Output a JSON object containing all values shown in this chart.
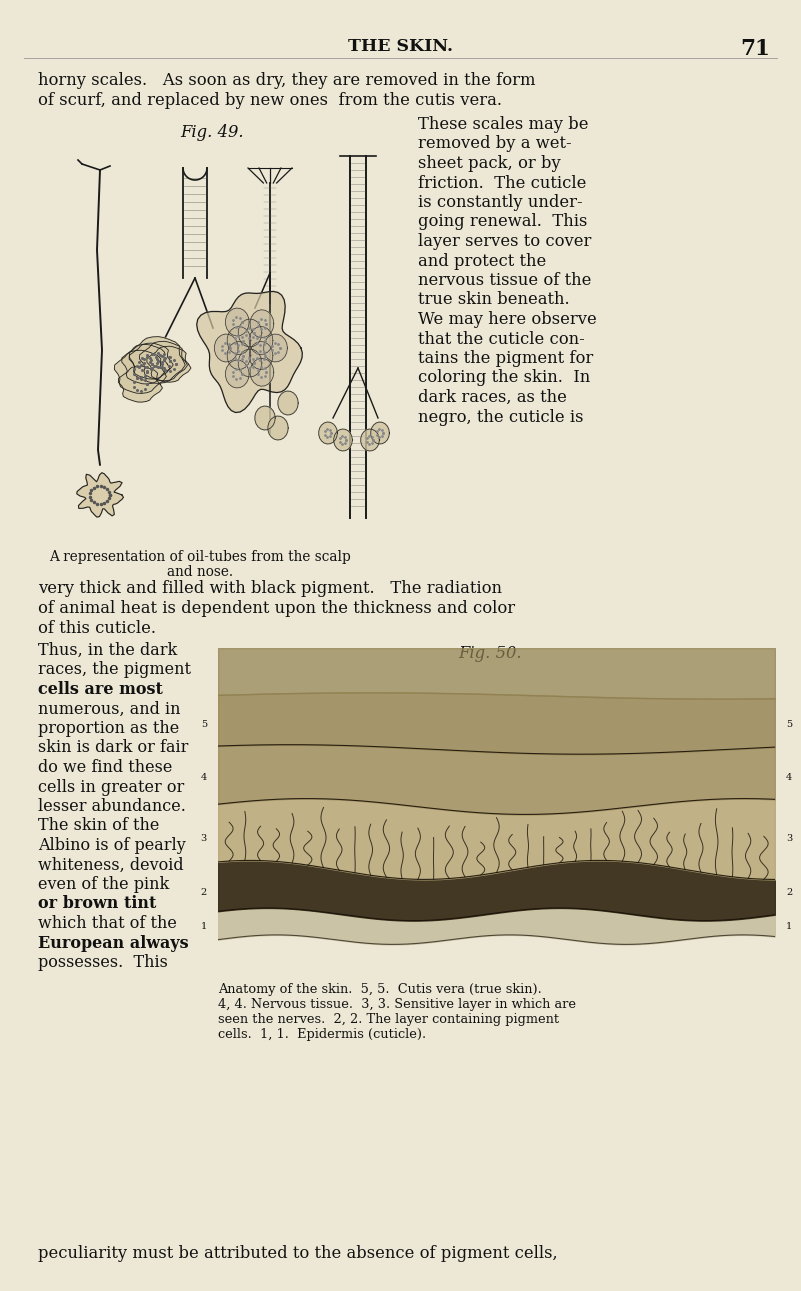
{
  "bg_color": "#ede8d5",
  "page_width": 8.01,
  "page_height": 12.91,
  "dpi": 100,
  "header_text": "THE SKIN.",
  "header_page": "71",
  "body_text_top": [
    "horny scales.   As soon as dry, they are removed in the form",
    "of scurf, and replaced by new ones  from the cutis vera."
  ],
  "fig49_label": "Fig. 49.",
  "fig49_caption_line1": "A representation of oil-tubes from the scalp",
  "fig49_caption_line2": "and nose.",
  "right_col": [
    "These scales may be",
    "removed by a wet-",
    "sheet pack, or by",
    "friction.  The cuticle",
    "is constantly under-",
    "going renewal.  This",
    "layer serves to cover",
    "and protect the",
    "nervous tissue of the",
    "true skin beneath.",
    "We may here observe",
    "that the cuticle con-",
    "tains the pigment for",
    "coloring the skin.  In",
    "dark races, as the",
    "negro, the cuticle is"
  ],
  "body_text_mid": [
    "very thick and filled with black pigment.   The radiation",
    "of animal heat is dependent upon the thickness and color",
    "of this cuticle."
  ],
  "fig50_label": "Fig. 50.",
  "left_col": [
    "Thus, in the dark",
    "races, the pigment",
    "cells are most",
    "numerous, and in",
    "proportion as the",
    "skin is dark or fair",
    "do we find these",
    "cells in greater or",
    "lesser abundance.",
    "The skin of the",
    "Albino is of pearly",
    "whiteness, devoid",
    "even of the pink",
    "or brown tint",
    "which that of the",
    "European always",
    "possesses.  This"
  ],
  "left_col_styles": [
    "normal",
    "normal",
    "spaced_bold",
    "normal",
    "normal",
    "normal",
    "normal",
    "normal",
    "normal",
    "normal",
    "normal",
    "normal",
    "normal",
    "spaced_bold",
    "normal",
    "spaced_bold",
    "normal"
  ],
  "fig50_caption": [
    "Anatomy of the skin.  5, 5.  Cutis vera (true skin).",
    "4, 4. Nervous tissue.  3, 3. Sensitive layer in which are",
    "seen the nerves.  2, 2. The layer containing pigment",
    "cells.  1, 1.  Epidermis (cuticle)."
  ],
  "bottom_text": "peculiarity must be attributed to the absence of pigment cells,",
  "text_color": "#111111",
  "font_size_body": 11.8,
  "font_size_caption": 9.8,
  "font_size_header": 12.5
}
